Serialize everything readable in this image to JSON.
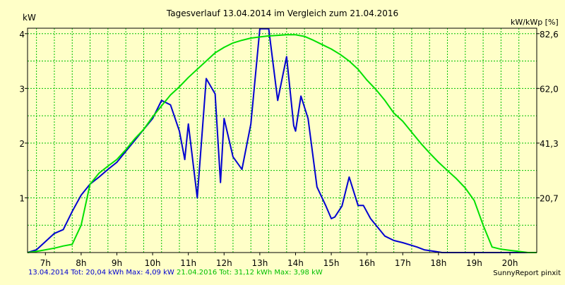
{
  "chart_data": {
    "type": "line",
    "title": "Tagesverlauf 13.04.2014 im Vergleich zum 21.04.2016",
    "ylabel_left": "kW",
    "ylabel_right": "kW/kWp [%]",
    "x_range": [
      6.5,
      20.75
    ],
    "x_ticks": [
      7,
      8,
      9,
      10,
      11,
      12,
      13,
      14,
      15,
      16,
      17,
      18,
      19,
      20
    ],
    "x_tick_labels": [
      "7h",
      "8h",
      "9h",
      "10h",
      "11h",
      "12h",
      "13h",
      "14h",
      "15h",
      "16h",
      "17h",
      "18h",
      "19h",
      "20h"
    ],
    "y_range": [
      0,
      4.1
    ],
    "y_ticks": [
      1,
      2,
      3,
      4
    ],
    "y_tick_labels": [
      "1",
      "2",
      "3",
      "4"
    ],
    "y_right_ticks": [
      1,
      2,
      3,
      4
    ],
    "y_right_tick_labels": [
      "20,7",
      "41,3",
      "62,0",
      "82,6"
    ],
    "grid": true,
    "grid_x": [
      6.75,
      7.25,
      7.75,
      8.25,
      8.75,
      9.25,
      9.75,
      10.25,
      10.75,
      11.25,
      11.75,
      12.25,
      12.75,
      13.25,
      13.75,
      14.25,
      14.75,
      15.25,
      15.75,
      16.25,
      16.75,
      17.25,
      17.75,
      18.25,
      18.75,
      19.25,
      19.75,
      20.25
    ],
    "grid_y": [
      0.5,
      1,
      1.5,
      2,
      2.5,
      3,
      3.5,
      4
    ],
    "series": [
      {
        "name": "13.04.2014",
        "color": "#0000d0",
        "x": [
          6.5,
          6.75,
          7.0,
          7.25,
          7.5,
          7.75,
          8.0,
          8.25,
          8.5,
          8.75,
          9.0,
          9.25,
          9.5,
          9.75,
          10.0,
          10.25,
          10.5,
          10.75,
          10.9,
          11.0,
          11.25,
          11.5,
          11.75,
          11.9,
          12.0,
          12.25,
          12.5,
          12.75,
          13.0,
          13.25,
          13.5,
          13.75,
          13.95,
          14.0,
          14.15,
          14.35,
          14.6,
          14.85,
          15.0,
          15.1,
          15.3,
          15.5,
          15.75,
          15.9,
          16.1,
          16.3,
          16.5,
          16.75,
          17.0,
          17.2,
          17.4,
          17.6,
          17.9,
          18.1,
          18.4,
          18.6,
          18.9,
          19.1,
          19.3,
          19.6,
          19.9,
          20.2,
          20.5,
          20.75
        ],
        "y": [
          0.0,
          0.05,
          0.2,
          0.35,
          0.42,
          0.75,
          1.05,
          1.25,
          1.38,
          1.52,
          1.65,
          1.85,
          2.05,
          2.25,
          2.45,
          2.78,
          2.7,
          2.22,
          1.7,
          2.35,
          1.0,
          3.18,
          2.9,
          1.28,
          2.45,
          1.75,
          1.52,
          2.35,
          4.09,
          4.09,
          2.78,
          3.58,
          2.32,
          2.22,
          2.86,
          2.45,
          1.2,
          0.85,
          0.62,
          0.65,
          0.85,
          1.38,
          0.86,
          0.86,
          0.62,
          0.46,
          0.3,
          0.22,
          0.18,
          0.14,
          0.1,
          0.05,
          0.02,
          0.0,
          0.0,
          0.0,
          0.0,
          0.0,
          0.0,
          0.0,
          0.0,
          0.0,
          0.0,
          0.0
        ]
      },
      {
        "name": "21.04.2016",
        "color": "#00e000",
        "x": [
          6.5,
          6.75,
          7.0,
          7.25,
          7.5,
          7.75,
          8.0,
          8.25,
          8.5,
          8.75,
          9.0,
          9.25,
          9.5,
          9.75,
          10.0,
          10.25,
          10.5,
          10.75,
          11.0,
          11.25,
          11.5,
          11.75,
          12.0,
          12.25,
          12.5,
          12.75,
          13.0,
          13.25,
          13.5,
          13.75,
          14.0,
          14.25,
          14.5,
          14.75,
          15.0,
          15.25,
          15.5,
          15.75,
          16.0,
          16.25,
          16.5,
          16.75,
          17.0,
          17.25,
          17.5,
          17.75,
          18.0,
          18.25,
          18.5,
          18.75,
          19.0,
          19.25,
          19.5,
          19.75,
          20.0,
          20.25,
          20.5,
          20.75
        ],
        "y": [
          0.0,
          0.02,
          0.05,
          0.08,
          0.12,
          0.15,
          0.5,
          1.25,
          1.45,
          1.58,
          1.7,
          1.88,
          2.08,
          2.25,
          2.48,
          2.68,
          2.88,
          3.03,
          3.2,
          3.35,
          3.5,
          3.65,
          3.75,
          3.83,
          3.88,
          3.92,
          3.94,
          3.96,
          3.97,
          3.98,
          3.98,
          3.95,
          3.88,
          3.8,
          3.72,
          3.62,
          3.5,
          3.35,
          3.15,
          2.98,
          2.78,
          2.55,
          2.4,
          2.2,
          2.0,
          1.82,
          1.65,
          1.5,
          1.35,
          1.18,
          0.95,
          0.5,
          0.1,
          0.06,
          0.04,
          0.02,
          0.0,
          0.0
        ]
      }
    ]
  },
  "footer": {
    "series1_summary": "13.04.2014 Tot: 20,04 kWh Max: 4,09 kW",
    "series2_summary": "21.04.2016 Tot: 31,12 kWh Max: 3,98 kW",
    "credit": "SunnyReport pinxit"
  },
  "colors": {
    "background": "#ffffc8",
    "plot_border": "#000000",
    "grid": "#00c000",
    "series1": "#0000d0",
    "series2": "#00e000"
  }
}
